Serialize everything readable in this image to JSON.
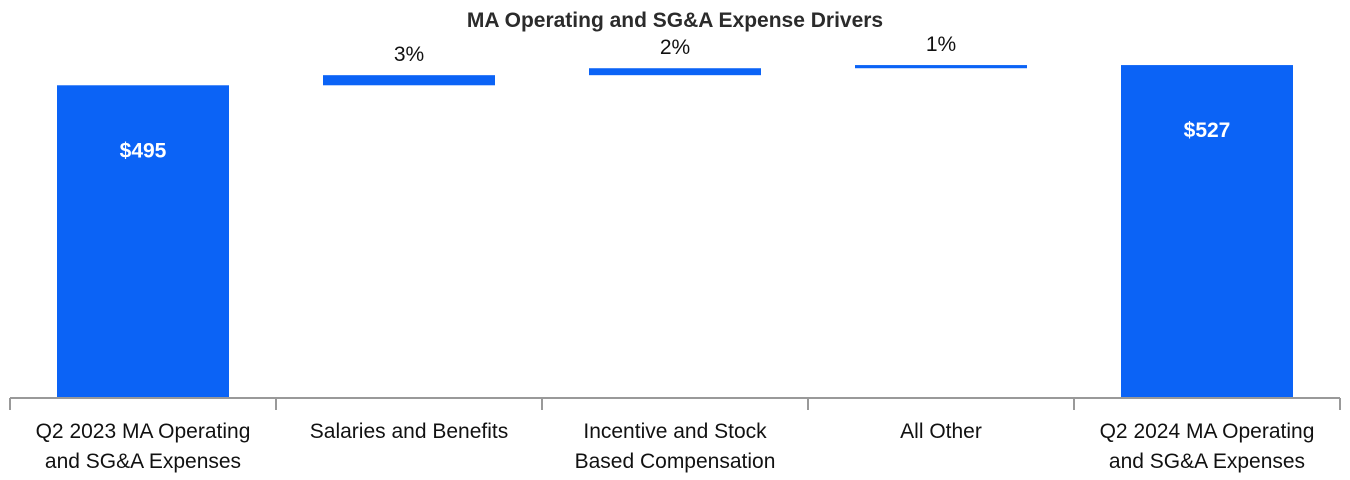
{
  "chart_data": {
    "type": "bar",
    "subtype": "waterfall",
    "title": "MA Operating and SG&A Expense Drivers",
    "xlabel": "",
    "ylabel": "",
    "categories": [
      [
        "Q2 2023 MA Operating",
        "and SG&A Expenses"
      ],
      [
        "Salaries and Benefits"
      ],
      [
        "Incentive and Stock",
        "Based Compensation"
      ],
      [
        "All Other"
      ],
      [
        "Q2 2024 MA Operating",
        "and SG&A Expenses"
      ]
    ],
    "bars": [
      {
        "kind": "total",
        "start": 0,
        "end": 495,
        "label": "$495"
      },
      {
        "kind": "delta",
        "start": 495,
        "end": 511,
        "label": "3%"
      },
      {
        "kind": "delta",
        "start": 511,
        "end": 522,
        "label": "2%"
      },
      {
        "kind": "delta",
        "start": 522,
        "end": 527,
        "label": "1%"
      },
      {
        "kind": "total",
        "start": 0,
        "end": 527,
        "label": "$527"
      }
    ],
    "ylim": [
      0,
      630
    ],
    "grid": false,
    "legend": "none",
    "bar_color": "#0b63f6",
    "axis_color": "#999999"
  }
}
